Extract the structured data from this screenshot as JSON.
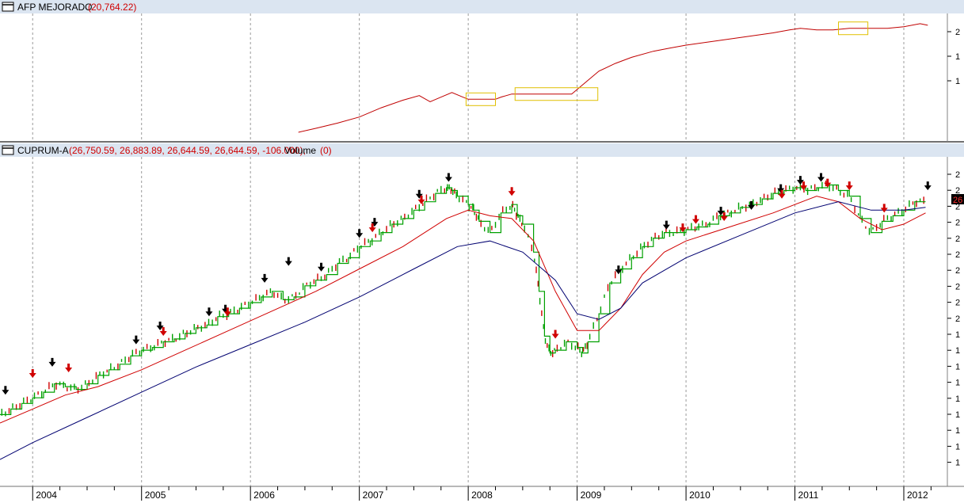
{
  "top_panel": {
    "title": "AFP MEJORADO",
    "value": "(20,764.22)"
  },
  "bottom_panel": {
    "title": "CUPRUM-A",
    "ohlc": "(26,750.59, 26,883.89, 26,644.59, 26,644.59, -106.000),",
    "volume_label": "Volume",
    "volume_value": "(0)",
    "last_price_tag": "26"
  },
  "axis": {
    "years": [
      "2004",
      "2005",
      "2006",
      "2007",
      "2008",
      "2009",
      "2010",
      "2011",
      "2012"
    ]
  },
  "right_axis": {
    "top_ticks": [
      "2",
      "1",
      "1"
    ],
    "bottom_ticks": [
      "2",
      "2",
      "2",
      "2",
      "2",
      "2",
      "2",
      "2",
      "2",
      "2",
      "1",
      "1",
      "1",
      "1",
      "1",
      "1",
      "1",
      "1",
      "1"
    ]
  },
  "colors": {
    "panel_header": "#dbe5f1",
    "price": "#00a000",
    "down_candle": "#d00000",
    "ma_fast": "#d00000",
    "ma_slow": "#000070",
    "line_top": "#c00000",
    "highlight_box": "#e0c000",
    "grid": "#9a9a9a"
  },
  "chart_data": [
    {
      "type": "line",
      "series": [
        {
          "x": [
            2006.44,
            2006.6,
            2006.8,
            2007.0,
            2007.2,
            2007.4,
            2007.55,
            2007.65,
            2007.75,
            2007.85,
            2007.95,
            2008.0,
            2008.25,
            2008.3,
            2008.4,
            2008.6,
            2008.8,
            2008.95,
            2009.1,
            2009.2,
            2009.35,
            2009.5,
            2009.7,
            2009.85,
            2010.0,
            2010.2,
            2010.4,
            2010.6,
            2010.8,
            2010.95,
            2011.05,
            2011.2,
            2011.35,
            2011.5,
            2011.63,
            2011.75,
            2011.85,
            2012.0,
            2012.15,
            2012.22
          ],
          "y": [
            100,
            101.3,
            103,
            105,
            108,
            110.5,
            112,
            110,
            111.5,
            113,
            111.5,
            110.8,
            110.8,
            111.5,
            112.5,
            112.5,
            112.5,
            112.5,
            117,
            120,
            122.5,
            124.5,
            126.5,
            127.5,
            128.5,
            129.5,
            130.5,
            131.5,
            132.5,
            133.5,
            134,
            133.5,
            133.5,
            134,
            134,
            134,
            134,
            134.5,
            135.5,
            135
          ]
        }
      ]
    },
    {
      "type": "line",
      "series": [
        {
          "x": [
            2003.7,
            2003.8,
            2003.9,
            2004.0,
            2004.1,
            2004.2,
            2004.3,
            2004.4,
            2004.5,
            2004.6,
            2004.7,
            2004.8,
            2004.9,
            2005.0,
            2005.1,
            2005.2,
            2005.3,
            2005.4,
            2005.5,
            2005.6,
            2005.7,
            2005.8,
            2005.9,
            2006.0,
            2006.1,
            2006.2,
            2006.3,
            2006.4,
            2006.5,
            2006.6,
            2006.7,
            2006.8,
            2006.9,
            2007.0,
            2007.1,
            2007.2,
            2007.3,
            2007.4,
            2007.5,
            2007.6,
            2007.7,
            2007.8,
            2007.85,
            2007.9,
            2008.0,
            2008.05,
            2008.1,
            2008.2,
            2008.3,
            2008.4,
            2008.45,
            2008.5,
            2008.6,
            2008.65,
            2008.7,
            2008.75,
            2008.8,
            2008.9,
            2009.0,
            2009.05,
            2009.1,
            2009.2,
            2009.3,
            2009.4,
            2009.5,
            2009.6,
            2009.7,
            2009.8,
            2009.9,
            2010.0,
            2010.1,
            2010.2,
            2010.3,
            2010.4,
            2010.5,
            2010.6,
            2010.7,
            2010.8,
            2010.9,
            2011.0,
            2011.1,
            2011.2,
            2011.3,
            2011.4,
            2011.5,
            2011.6,
            2011.7,
            2011.8,
            2011.9,
            2012.0,
            2012.1,
            2012.2
          ],
          "y": [
            48,
            50,
            52,
            54,
            56,
            59,
            58,
            57,
            59,
            62,
            64,
            66,
            69,
            71,
            72,
            74,
            75,
            77,
            79,
            80,
            83,
            84,
            86,
            88,
            90,
            92,
            89,
            90,
            94,
            96,
            98,
            102,
            104,
            108,
            110,
            113,
            116,
            118,
            121,
            124,
            127,
            129,
            128,
            126,
            123,
            121,
            117,
            113,
            120,
            123,
            119,
            116,
            106,
            92,
            76,
            70,
            71,
            74,
            72,
            70,
            74,
            84,
            95,
            100,
            104,
            108,
            111,
            113,
            113,
            114,
            115,
            116,
            119,
            120,
            122,
            123,
            125,
            127,
            128,
            129,
            128,
            129,
            130,
            128,
            126,
            118,
            113,
            117,
            119,
            121,
            124,
            124
          ]
        },
        {
          "name": "",
          "x": [
            2003.7,
            2004.0,
            2004.3,
            2004.6,
            2005.0,
            2005.4,
            2005.8,
            2006.2,
            2006.6,
            2007.0,
            2007.4,
            2007.8,
            2008.0,
            2008.2,
            2008.4,
            2008.6,
            2008.8,
            2009.0,
            2009.2,
            2009.4,
            2009.6,
            2009.8,
            2010.0,
            2010.4,
            2010.8,
            2011.2,
            2011.4,
            2011.6,
            2011.8,
            2012.0,
            2012.2
          ],
          "y": [
            45,
            50,
            55,
            58,
            64,
            71,
            78,
            85,
            92,
            100,
            108,
            118,
            121,
            119,
            118,
            110,
            92,
            78,
            78,
            86,
            98,
            106,
            110,
            115,
            120,
            126,
            124,
            118,
            114,
            116,
            120
          ]
        },
        {
          "name": "",
          "x": [
            2003.7,
            2004.0,
            2004.5,
            2005.0,
            2005.5,
            2006.0,
            2006.5,
            2007.0,
            2007.5,
            2007.9,
            2008.2,
            2008.5,
            2008.8,
            2009.0,
            2009.2,
            2009.4,
            2009.6,
            2010.0,
            2010.5,
            2011.0,
            2011.4,
            2011.7,
            2012.0,
            2012.2
          ],
          "y": [
            32,
            38,
            47,
            56,
            65,
            73,
            81,
            90,
            100,
            108,
            110,
            106,
            96,
            84,
            82,
            86,
            95,
            104,
            112,
            120,
            124,
            121,
            121,
            122
          ]
        }
      ]
    }
  ]
}
